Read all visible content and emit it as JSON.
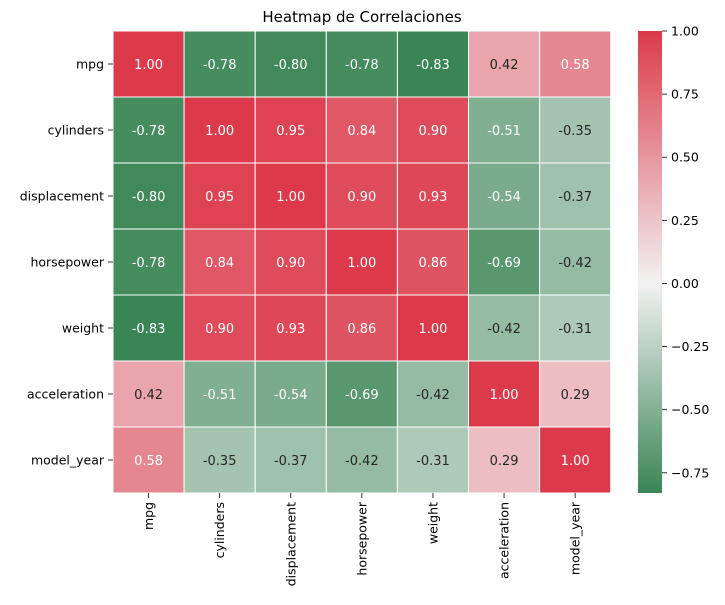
{
  "chart_data": {
    "type": "heatmap",
    "title": "Heatmap de Correlaciones",
    "xlabel": "",
    "ylabel": "",
    "rows": [
      "mpg",
      "cylinders",
      "displacement",
      "horsepower",
      "weight",
      "acceleration",
      "model_year"
    ],
    "columns": [
      "mpg",
      "cylinders",
      "displacement",
      "horsepower",
      "weight",
      "acceleration",
      "model_year"
    ],
    "values": [
      [
        1.0,
        -0.78,
        -0.8,
        -0.78,
        -0.83,
        0.42,
        0.58
      ],
      [
        -0.78,
        1.0,
        0.95,
        0.84,
        0.9,
        -0.51,
        -0.35
      ],
      [
        -0.8,
        0.95,
        1.0,
        0.9,
        0.93,
        -0.54,
        -0.37
      ],
      [
        -0.78,
        0.84,
        0.9,
        1.0,
        0.86,
        -0.69,
        -0.42
      ],
      [
        -0.83,
        0.9,
        0.93,
        0.86,
        1.0,
        -0.42,
        -0.31
      ],
      [
        0.42,
        -0.51,
        -0.54,
        -0.69,
        -0.42,
        1.0,
        0.29
      ],
      [
        0.58,
        -0.35,
        -0.37,
        -0.42,
        -0.31,
        0.29,
        1.0
      ]
    ],
    "value_format": "0.00",
    "color_range": [
      -0.83,
      1.0
    ],
    "colormap": {
      "negative_color": "#3a8555",
      "center_color": "#f2f2f2",
      "positive_color": "#dc3a4a"
    },
    "colorbar": {
      "placement": "right",
      "ticks": [
        1.0,
        0.75,
        0.5,
        0.25,
        0.0,
        -0.25,
        -0.5,
        -0.75
      ],
      "tick_labels": [
        "1.00",
        "0.75",
        "0.50",
        "0.25",
        "0.00",
        "−0.25",
        "−0.50",
        "−0.75"
      ]
    },
    "cell_separator_color": "#ffffff",
    "grid": false
  }
}
